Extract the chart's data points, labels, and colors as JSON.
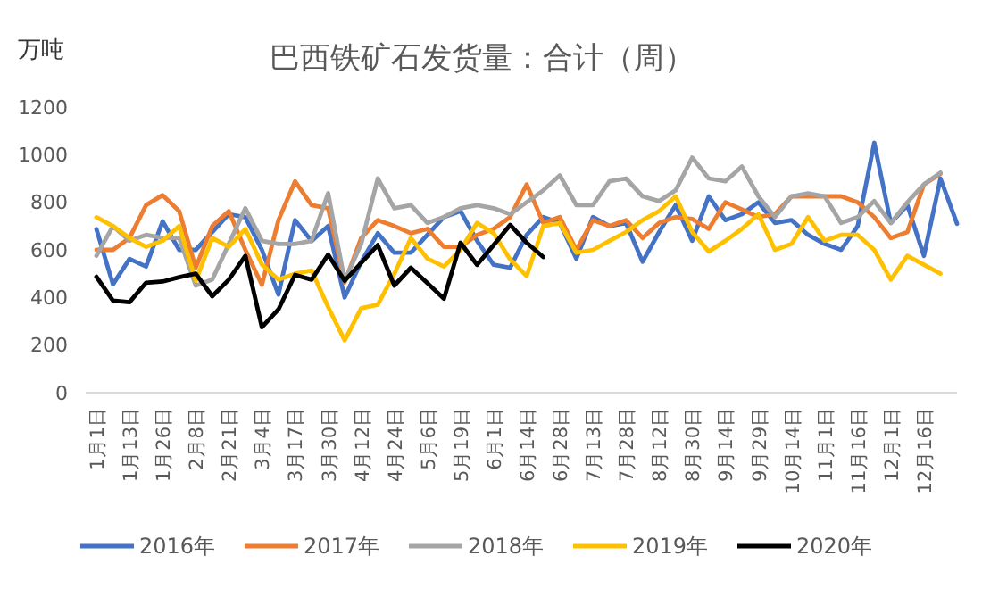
{
  "chart_data": {
    "type": "line",
    "title": "巴西铁矿石发货量：合计（周）",
    "ylabel": "万吨",
    "categories": [
      "1月1日",
      null,
      "1月13日",
      null,
      "1月26日",
      null,
      "2月8日",
      null,
      "2月21日",
      null,
      "3月4日",
      null,
      "3月17日",
      null,
      "3月30日",
      null,
      "4月12日",
      null,
      "4月24日",
      null,
      "5月6日",
      null,
      "5月19日",
      null,
      "6月1日",
      null,
      "6月14日",
      null,
      "6月28日",
      null,
      "7月13日",
      null,
      "7月28日",
      null,
      "8月12日",
      null,
      "8月30日",
      null,
      "9月14日",
      null,
      "9月29日",
      null,
      "10月14日",
      null,
      "11月1日",
      null,
      "11月16日",
      null,
      "12月1日",
      null,
      "12月16日",
      null,
      null
    ],
    "ylim": [
      0,
      1200
    ],
    "yticks": [
      0,
      200,
      400,
      600,
      800,
      1000,
      1200
    ],
    "grid": false,
    "legend": "bottom",
    "marker": "none",
    "line_style": "solid",
    "series": [
      {
        "name": "2016年",
        "color": "#4472c4",
        "values": [
          687,
          455,
          562,
          530,
          720,
          600,
          600,
          675,
          750,
          737,
          600,
          412,
          725,
          637,
          700,
          400,
          550,
          670,
          588,
          588,
          663,
          738,
          763,
          638,
          538,
          525,
          663,
          738,
          713,
          563,
          738,
          700,
          713,
          550,
          675,
          788,
          638,
          825,
          725,
          750,
          800,
          713,
          725,
          663,
          625,
          600,
          700,
          1050,
          713,
          788,
          575,
          900,
          710
        ]
      },
      {
        "name": "2017年",
        "color": "#ed7d31",
        "values": [
          600,
          600,
          650,
          788,
          830,
          763,
          525,
          700,
          763,
          600,
          453,
          725,
          888,
          788,
          775,
          463,
          650,
          725,
          700,
          670,
          688,
          613,
          613,
          663,
          688,
          738,
          875,
          713,
          738,
          600,
          725,
          700,
          725,
          650,
          713,
          738,
          730,
          688,
          800,
          770,
          738,
          750,
          825,
          825,
          825,
          825,
          800,
          738,
          650,
          675,
          875,
          920,
          null
        ]
      },
      {
        "name": "2018年",
        "color": "#a5a5a5",
        "values": [
          575,
          700,
          638,
          663,
          650,
          650,
          450,
          475,
          625,
          775,
          638,
          625,
          625,
          638,
          838,
          470,
          625,
          900,
          775,
          788,
          713,
          738,
          775,
          788,
          775,
          750,
          800,
          850,
          913,
          788,
          788,
          888,
          900,
          825,
          805,
          850,
          988,
          900,
          888,
          950,
          825,
          738,
          825,
          838,
          825,
          713,
          738,
          805,
          713,
          800,
          875,
          925,
          null
        ]
      },
      {
        "name": "2019年",
        "color": "#ffc000",
        "values": [
          737,
          700,
          650,
          613,
          638,
          700,
          470,
          650,
          613,
          688,
          538,
          475,
          500,
          513,
          360,
          220,
          355,
          370,
          500,
          650,
          563,
          530,
          600,
          713,
          670,
          560,
          490,
          700,
          713,
          588,
          600,
          638,
          675,
          725,
          763,
          825,
          675,
          593,
          638,
          688,
          750,
          600,
          625,
          738,
          638,
          663,
          663,
          600,
          475,
          575,
          538,
          500,
          null
        ]
      },
      {
        "name": "2020年",
        "color": "#000000",
        "values": [
          487,
          387,
          380,
          462,
          467,
          485,
          500,
          405,
          475,
          575,
          275,
          350,
          495,
          475,
          580,
          470,
          545,
          620,
          450,
          525,
          460,
          395,
          630,
          537,
          620,
          705,
          630,
          570,
          null,
          null,
          null,
          null,
          null,
          null,
          null,
          null,
          null,
          null,
          null,
          null,
          null,
          null,
          null,
          null,
          null,
          null,
          null,
          null,
          null,
          null,
          null,
          null,
          null
        ]
      }
    ]
  }
}
